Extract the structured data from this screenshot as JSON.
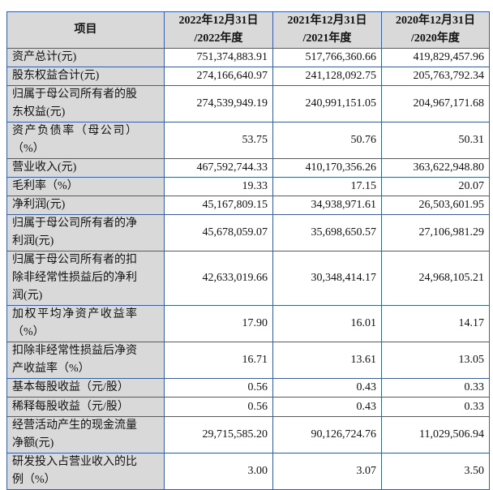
{
  "table": {
    "headers": [
      "项目",
      "2022年12月31日/2022年度",
      "2021年12月31日/2021年度",
      "2020年12月31日/2020年度"
    ],
    "header_lines": [
      [
        "项目"
      ],
      [
        "2022年12月31日",
        "/2022年度"
      ],
      [
        "2021年12月31日",
        "/2021年度"
      ],
      [
        "2020年12月31日",
        "/2020年度"
      ]
    ],
    "rows": [
      {
        "label": "资产总计(元)",
        "values": [
          "751,374,883.91",
          "517,766,360.66",
          "419,829,457.96"
        ]
      },
      {
        "label": "股东权益合计(元)",
        "values": [
          "274,166,640.97",
          "241,128,092.75",
          "205,763,792.34"
        ]
      },
      {
        "label": "归属于母公司所有者的股东权益(元)",
        "values": [
          "274,539,949.19",
          "240,991,151.05",
          "204,967,171.68"
        ]
      },
      {
        "label": "资产负债率（母公司）（%）",
        "values": [
          "53.75",
          "50.76",
          "50.31"
        ]
      },
      {
        "label": "营业收入(元)",
        "values": [
          "467,592,744.33",
          "410,170,356.26",
          "363,622,948.80"
        ]
      },
      {
        "label": "毛利率（%）",
        "values": [
          "19.33",
          "17.15",
          "20.07"
        ]
      },
      {
        "label": "净利润(元)",
        "values": [
          "45,167,809.15",
          "34,938,971.61",
          "26,503,601.95"
        ]
      },
      {
        "label": "归属于母公司所有者的净利润(元)",
        "values": [
          "45,678,059.07",
          "35,698,650.57",
          "27,106,981.29"
        ]
      },
      {
        "label": "归属于母公司所有者的扣除非经常性损益后的净利润(元)",
        "values": [
          "42,633,019.66",
          "30,348,414.17",
          "24,968,105.21"
        ]
      },
      {
        "label": "加权平均净资产收益率（%）",
        "values": [
          "17.90",
          "16.01",
          "14.17"
        ]
      },
      {
        "label": "扣除非经常性损益后净资产收益率（%）",
        "values": [
          "16.71",
          "13.61",
          "13.05"
        ]
      },
      {
        "label": "基本每股收益（元/股）",
        "values": [
          "0.56",
          "0.43",
          "0.33"
        ]
      },
      {
        "label": "稀释每股收益（元/股）",
        "values": [
          "0.56",
          "0.43",
          "0.33"
        ]
      },
      {
        "label": "经营活动产生的现金流量净额(元)",
        "values": [
          "29,715,585.20",
          "90,126,724.76",
          "11,029,506.94"
        ]
      },
      {
        "label": "研发投入占营业收入的比例（%）",
        "values": [
          "3.00",
          "3.07",
          "3.50"
        ]
      }
    ]
  }
}
